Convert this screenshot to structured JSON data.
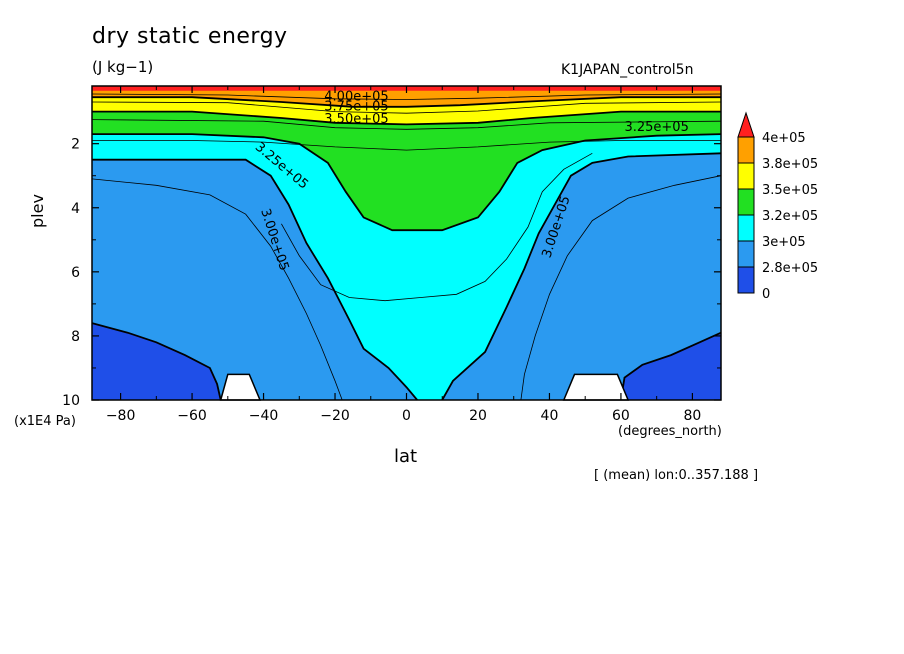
{
  "chart_data": {
    "type": "contour",
    "title": "dry static energy",
    "units": "(J kg−1)",
    "run_label": "K1JAPAN_control5n",
    "xlabel": "lat",
    "x_unit": "(degrees_north)",
    "ylabel": "plev",
    "y_unit": "(x1E4 Pa)",
    "footnote": "[ (mean) lon:0..357.188 ]",
    "xlim": [
      -88,
      88
    ],
    "ylim": [
      10,
      0.2
    ],
    "x_ticks": [
      -80,
      -60,
      -40,
      -20,
      0,
      20,
      40,
      60,
      80
    ],
    "x_tick_labels": [
      "−80",
      "−60",
      "−40",
      "−20",
      "0",
      "20",
      "40",
      "60",
      "80"
    ],
    "y_ticks": [
      2,
      4,
      6,
      8,
      10
    ],
    "y_tick_labels": [
      "2",
      "4",
      "6",
      "8",
      "10"
    ],
    "colorbar": {
      "labels": [
        "4e+05",
        "3.8e+05",
        "3.5e+05",
        "3.2e+05",
        "3e+05",
        "2.8e+05",
        "0"
      ],
      "colors": [
        "#ff2020",
        "#ffa000",
        "#ffff00",
        "#22e022",
        "#00ffff",
        "#2b9af0",
        "#1f4fe8"
      ]
    },
    "contour_labels": [
      {
        "text": "4.00e+05",
        "x": -14,
        "y": 0.55,
        "angle": 0
      },
      {
        "text": "3.75e+05",
        "x": -14,
        "y": 0.85,
        "angle": 0
      },
      {
        "text": "3.50e+05",
        "x": -14,
        "y": 1.25,
        "angle": 0
      },
      {
        "text": "3.25e+05",
        "x": 70,
        "y": 1.5,
        "angle": 0
      },
      {
        "text": "3.25e+05",
        "x": -35,
        "y": 2.7,
        "angle": 40
      },
      {
        "text": "3.00e+05",
        "x": -37,
        "y": 5.0,
        "angle": 72
      },
      {
        "text": "3.00e+05",
        "x": 42,
        "y": 4.6,
        "angle": -72
      }
    ],
    "regions": [
      {
        "level": "3.2e+05",
        "color": "#22e022",
        "points": [
          [
            -88,
            1.7
          ],
          [
            -60,
            1.7
          ],
          [
            -40,
            1.8
          ],
          [
            -30,
            2.0
          ],
          [
            -22,
            2.6
          ],
          [
            -17,
            3.5
          ],
          [
            -12,
            4.3
          ],
          [
            -4,
            4.7
          ],
          [
            10,
            4.7
          ],
          [
            20,
            4.3
          ],
          [
            26,
            3.5
          ],
          [
            31,
            2.6
          ],
          [
            38,
            2.2
          ],
          [
            50,
            1.9
          ],
          [
            70,
            1.75
          ],
          [
            88,
            1.7
          ],
          [
            88,
            0.2
          ],
          [
            -88,
            0.2
          ]
        ]
      },
      {
        "level": "3.5e+05",
        "color": "#ffff00",
        "points": [
          [
            -88,
            1.0
          ],
          [
            -60,
            1.0
          ],
          [
            -35,
            1.2
          ],
          [
            -20,
            1.35
          ],
          [
            0,
            1.4
          ],
          [
            20,
            1.35
          ],
          [
            35,
            1.2
          ],
          [
            60,
            1.0
          ],
          [
            88,
            1.0
          ],
          [
            88,
            0.2
          ],
          [
            -88,
            0.2
          ]
        ]
      },
      {
        "level": "3.8e+05",
        "color": "#ffa000",
        "points": [
          [
            -88,
            0.55
          ],
          [
            -60,
            0.55
          ],
          [
            -35,
            0.7
          ],
          [
            -15,
            0.85
          ],
          [
            0,
            0.85
          ],
          [
            15,
            0.8
          ],
          [
            35,
            0.68
          ],
          [
            60,
            0.55
          ],
          [
            88,
            0.55
          ],
          [
            88,
            0.2
          ],
          [
            -88,
            0.2
          ]
        ]
      },
      {
        "level": "4e+05",
        "color": "#ff2020",
        "points": [
          [
            -88,
            0.35
          ],
          [
            88,
            0.35
          ],
          [
            88,
            0.2
          ],
          [
            -88,
            0.2
          ]
        ]
      }
    ],
    "cyan_region": [
      [
        -88,
        2.5
      ],
      [
        -60,
        2.5
      ],
      [
        -45,
        2.5
      ],
      [
        -38,
        3.0
      ],
      [
        -33,
        3.9
      ],
      [
        -28,
        5.1
      ],
      [
        -22,
        6.2
      ],
      [
        -16,
        7.5
      ],
      [
        -12,
        8.4
      ],
      [
        -5,
        9.0
      ],
      [
        0,
        9.6
      ],
      [
        3,
        10
      ],
      [
        10,
        10
      ],
      [
        13,
        9.4
      ],
      [
        22,
        8.5
      ],
      [
        28,
        7.1
      ],
      [
        33,
        5.9
      ],
      [
        37,
        4.8
      ],
      [
        42,
        3.8
      ],
      [
        46,
        3.0
      ],
      [
        52,
        2.6
      ],
      [
        62,
        2.4
      ],
      [
        88,
        2.3
      ],
      [
        88,
        1.7
      ],
      [
        70,
        1.75
      ],
      [
        50,
        1.9
      ],
      [
        38,
        2.2
      ],
      [
        31,
        2.6
      ],
      [
        26,
        3.5
      ],
      [
        20,
        4.3
      ],
      [
        10,
        4.7
      ],
      [
        -4,
        4.7
      ],
      [
        -12,
        4.3
      ],
      [
        -17,
        3.5
      ],
      [
        -22,
        2.6
      ],
      [
        -30,
        2.0
      ],
      [
        -40,
        1.8
      ],
      [
        -60,
        1.7
      ],
      [
        -88,
        1.7
      ]
    ],
    "dark_regions": [
      [
        [
          -88,
          7.6
        ],
        [
          -78,
          7.9
        ],
        [
          -70,
          8.2
        ],
        [
          -62,
          8.6
        ],
        [
          -55,
          9.0
        ],
        [
          -53,
          9.5
        ],
        [
          -52,
          10
        ],
        [
          -88,
          10
        ]
      ],
      [
        [
          60,
          10
        ],
        [
          61,
          9.3
        ],
        [
          66,
          8.9
        ],
        [
          74,
          8.6
        ],
        [
          82,
          8.2
        ],
        [
          88,
          7.9
        ],
        [
          88,
          10
        ]
      ]
    ],
    "topography": [
      [
        [
          -52,
          10
        ],
        [
          -50,
          9.2
        ],
        [
          -44,
          9.2
        ],
        [
          -41,
          10
        ]
      ],
      [
        [
          44,
          10
        ],
        [
          47,
          9.2
        ],
        [
          59,
          9.2
        ],
        [
          62,
          10
        ]
      ]
    ],
    "thin_contours": [
      [
        [
          -88,
          0.45
        ],
        [
          -50,
          0.48
        ],
        [
          -20,
          0.6
        ],
        [
          0,
          0.62
        ],
        [
          20,
          0.58
        ],
        [
          50,
          0.48
        ],
        [
          88,
          0.45
        ]
      ],
      [
        [
          -88,
          0.7
        ],
        [
          -50,
          0.72
        ],
        [
          -20,
          1.0
        ],
        [
          0,
          1.05
        ],
        [
          20,
          0.98
        ],
        [
          50,
          0.74
        ],
        [
          88,
          0.7
        ]
      ],
      [
        [
          -88,
          1.25
        ],
        [
          -40,
          1.3
        ],
        [
          -20,
          1.5
        ],
        [
          0,
          1.55
        ],
        [
          20,
          1.5
        ],
        [
          40,
          1.35
        ],
        [
          88,
          1.3
        ]
      ],
      [
        [
          -88,
          1.9
        ],
        [
          -60,
          1.9
        ],
        [
          -40,
          1.95
        ],
        [
          -20,
          2.1
        ],
        [
          0,
          2.2
        ],
        [
          20,
          2.1
        ],
        [
          40,
          1.95
        ],
        [
          60,
          1.9
        ],
        [
          88,
          1.9
        ]
      ],
      [
        [
          -88,
          3.1
        ],
        [
          -70,
          3.3
        ],
        [
          -55,
          3.6
        ],
        [
          -45,
          4.2
        ],
        [
          -38,
          5.2
        ],
        [
          -33,
          6.2
        ],
        [
          -28,
          7.3
        ],
        [
          -24,
          8.3
        ],
        [
          -20,
          9.4
        ],
        [
          -18,
          10
        ]
      ],
      [
        [
          -35,
          4.5
        ],
        [
          -30,
          5.5
        ],
        [
          -24,
          6.4
        ],
        [
          -16,
          6.8
        ],
        [
          -6,
          6.9
        ],
        [
          4,
          6.8
        ],
        [
          14,
          6.7
        ],
        [
          22,
          6.3
        ],
        [
          28,
          5.6
        ],
        [
          34,
          4.6
        ],
        [
          38,
          3.5
        ],
        [
          44,
          2.8
        ],
        [
          52,
          2.3
        ]
      ],
      [
        [
          88,
          3.0
        ],
        [
          75,
          3.3
        ],
        [
          62,
          3.7
        ],
        [
          52,
          4.4
        ],
        [
          45,
          5.5
        ],
        [
          40,
          6.7
        ],
        [
          36,
          8.0
        ],
        [
          33,
          9.2
        ],
        [
          32,
          10
        ]
      ]
    ],
    "thick_contours": [
      [
        [
          -88,
          1.7
        ],
        [
          -60,
          1.7
        ],
        [
          -40,
          1.8
        ],
        [
          -30,
          2.0
        ],
        [
          -22,
          2.6
        ],
        [
          -17,
          3.5
        ],
        [
          -12,
          4.3
        ],
        [
          -4,
          4.7
        ],
        [
          10,
          4.7
        ],
        [
          20,
          4.3
        ],
        [
          26,
          3.5
        ],
        [
          31,
          2.6
        ],
        [
          38,
          2.2
        ],
        [
          50,
          1.9
        ],
        [
          70,
          1.75
        ],
        [
          88,
          1.7
        ]
      ],
      [
        [
          -88,
          2.5
        ],
        [
          -60,
          2.5
        ],
        [
          -45,
          2.5
        ],
        [
          -38,
          3.0
        ],
        [
          -33,
          3.9
        ],
        [
          -28,
          5.1
        ],
        [
          -22,
          6.2
        ],
        [
          -16,
          7.5
        ],
        [
          -12,
          8.4
        ],
        [
          -5,
          9.0
        ],
        [
          0,
          9.6
        ],
        [
          3,
          10
        ]
      ],
      [
        [
          10,
          10
        ],
        [
          13,
          9.4
        ],
        [
          22,
          8.5
        ],
        [
          28,
          7.1
        ],
        [
          33,
          5.9
        ],
        [
          37,
          4.8
        ],
        [
          42,
          3.8
        ],
        [
          46,
          3.0
        ],
        [
          52,
          2.6
        ],
        [
          62,
          2.4
        ],
        [
          88,
          2.3
        ]
      ],
      [
        [
          -88,
          1.0
        ],
        [
          -60,
          1.0
        ],
        [
          -35,
          1.2
        ],
        [
          -20,
          1.35
        ],
        [
          0,
          1.4
        ],
        [
          20,
          1.35
        ],
        [
          35,
          1.2
        ],
        [
          60,
          1.0
        ],
        [
          88,
          1.0
        ]
      ],
      [
        [
          -88,
          0.55
        ],
        [
          -60,
          0.55
        ],
        [
          -35,
          0.7
        ],
        [
          -15,
          0.85
        ],
        [
          0,
          0.85
        ],
        [
          15,
          0.8
        ],
        [
          35,
          0.68
        ],
        [
          60,
          0.55
        ],
        [
          88,
          0.55
        ]
      ],
      [
        [
          -88,
          7.6
        ],
        [
          -78,
          7.9
        ],
        [
          -70,
          8.2
        ],
        [
          -62,
          8.6
        ],
        [
          -55,
          9.0
        ],
        [
          -53,
          9.5
        ],
        [
          -52,
          10
        ]
      ],
      [
        [
          60,
          10
        ],
        [
          61,
          9.3
        ],
        [
          66,
          8.9
        ],
        [
          74,
          8.6
        ],
        [
          82,
          8.2
        ],
        [
          88,
          7.9
        ]
      ]
    ]
  }
}
